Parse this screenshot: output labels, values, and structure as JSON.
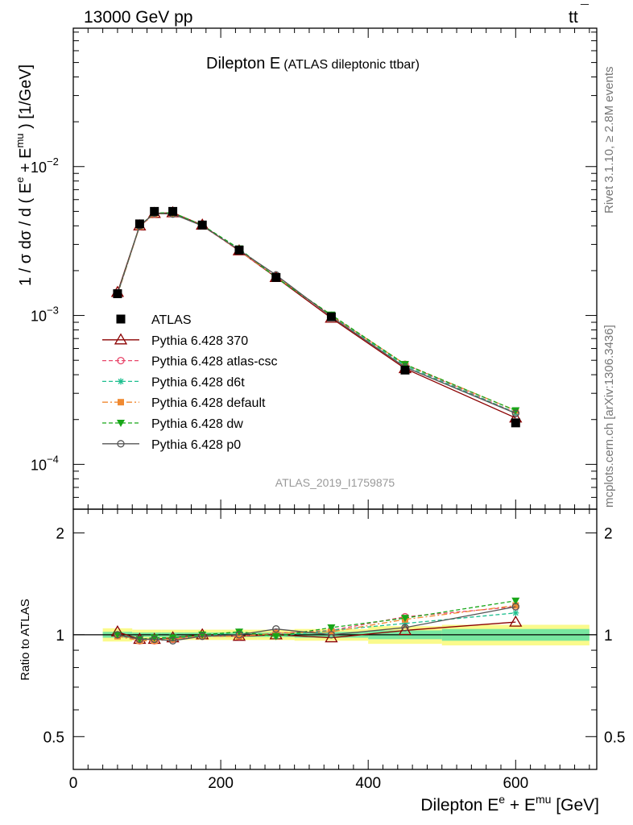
{
  "header": {
    "energy_label": "13000 GeV pp",
    "process_main": "tt",
    "process_bar": "¯",
    "rivet_label": "Rivet 3.1.10, ≥ 2.8M events",
    "site_label": "mcplots.cern.ch [arXiv:1306.3436]"
  },
  "chart_data": [
    {
      "type": "scatter",
      "panel": "main",
      "title_main": "Dilepton E",
      "title_sub": "(ATLAS dileptonic ttbar)",
      "watermark": "ATLAS_2019_I1759875",
      "ylabel": "1 / σ  dσ / d ( E",
      "ylabel_sup1": "e",
      "ylabel_mid": " + E",
      "ylabel_sup2": "mu",
      "ylabel_end": " ) [1/GeV]",
      "yscale": "log",
      "ylim": [
        5e-05,
        0.085
      ],
      "xlim": [
        0,
        710
      ],
      "yticks": [
        {
          "v": 0.0001,
          "m": "10",
          "e": "−4"
        },
        {
          "v": 0.001,
          "m": "10",
          "e": "−3"
        },
        {
          "v": 0.01,
          "m": "10",
          "e": "−2"
        }
      ],
      "x": [
        60,
        90,
        110,
        135,
        175,
        225,
        275,
        350,
        450,
        600
      ],
      "bin_edges": [
        [
          40,
          80
        ],
        [
          80,
          100
        ],
        [
          100,
          120
        ],
        [
          120,
          150
        ],
        [
          150,
          200
        ],
        [
          200,
          250
        ],
        [
          250,
          300
        ],
        [
          300,
          400
        ],
        [
          400,
          500
        ],
        [
          500,
          700
        ]
      ],
      "legend_position": "middle-left",
      "series": [
        {
          "name": "ATLAS",
          "color": "#000000",
          "marker": "square",
          "line": "none",
          "values": [
            0.0014,
            0.00412,
            0.005,
            0.005,
            0.00405,
            0.00275,
            0.0018,
            0.00098,
            0.00043,
            0.00019
          ]
        },
        {
          "name": "Pythia 6.428 370",
          "color": "#8b0000",
          "marker": "triangle-open",
          "line": "solid",
          "values": [
            0.00143,
            0.004,
            0.00485,
            0.0049,
            0.00405,
            0.00272,
            0.0018,
            0.00096,
            0.00044,
            0.000205
          ]
        },
        {
          "name": "Pythia 6.428 atlas-csc",
          "color": "#e8476b",
          "marker": "circle-open",
          "line": "dashed",
          "values": [
            0.0014,
            0.00397,
            0.0048,
            0.00485,
            0.004,
            0.00272,
            0.00181,
            0.001,
            0.00047,
            0.000222
          ]
        },
        {
          "name": "Pythia 6.428 d6t",
          "color": "#1dbf8f",
          "marker": "asterisk",
          "line": "dashed",
          "values": [
            0.0014,
            0.004,
            0.00485,
            0.00488,
            0.00403,
            0.0028,
            0.0018,
            0.001,
            0.00046,
            0.000222
          ]
        },
        {
          "name": "Pythia 6.428 default",
          "color": "#f08a32",
          "marker": "square-filled",
          "line": "dashdot",
          "values": [
            0.00138,
            0.00396,
            0.0048,
            0.00485,
            0.00401,
            0.00273,
            0.00182,
            0.001,
            0.00047,
            0.00023
          ]
        },
        {
          "name": "Pythia 6.428 dw",
          "color": "#18a618",
          "marker": "triangle-down-filled",
          "line": "dashed",
          "values": [
            0.0014,
            0.004,
            0.00488,
            0.0049,
            0.00404,
            0.00281,
            0.0018,
            0.00101,
            0.00047,
            0.00023
          ]
        },
        {
          "name": "Pythia 6.428 p0",
          "color": "#555555",
          "marker": "circle-open",
          "line": "solid",
          "values": [
            0.0014,
            0.004,
            0.00485,
            0.0048,
            0.004,
            0.00275,
            0.00187,
            0.00098,
            0.00045,
            0.00022
          ]
        }
      ]
    },
    {
      "type": "line",
      "panel": "ratio",
      "ylabel": "Ratio to ATLAS",
      "xlabel": "Dilepton E",
      "xlabel_sup1": "e",
      "xlabel_mid": " + E",
      "xlabel_sup2": "mu",
      "xlabel_end": " [GeV]",
      "yscale": "log",
      "ylim": [
        0.4,
        2.35
      ],
      "xlim": [
        0,
        710
      ],
      "yticks": [
        0.5,
        1,
        2
      ],
      "ytick_labels": [
        "0.5",
        "1",
        "2"
      ],
      "xticks": [
        0,
        200,
        400,
        600
      ],
      "xtick_labels": [
        "0",
        "200",
        "400",
        "600"
      ],
      "band_inner": [
        [
          0.98,
          1.02
        ],
        [
          0.985,
          1.015
        ],
        [
          0.985,
          1.015
        ],
        [
          0.985,
          1.015
        ],
        [
          0.985,
          1.015
        ],
        [
          0.985,
          1.015
        ],
        [
          0.985,
          1.015
        ],
        [
          0.98,
          1.02
        ],
        [
          0.97,
          1.03
        ],
        [
          0.96,
          1.04
        ]
      ],
      "band_outer": [
        [
          0.955,
          1.045
        ],
        [
          0.965,
          1.035
        ],
        [
          0.965,
          1.035
        ],
        [
          0.965,
          1.035
        ],
        [
          0.965,
          1.035
        ],
        [
          0.965,
          1.035
        ],
        [
          0.965,
          1.035
        ],
        [
          0.96,
          1.04
        ],
        [
          0.94,
          1.06
        ],
        [
          0.93,
          1.07
        ]
      ],
      "x": [
        60,
        90,
        110,
        135,
        175,
        225,
        275,
        350,
        450,
        600
      ],
      "series": [
        {
          "name": "Pythia 6.428 370",
          "values": [
            1.02,
            0.97,
            0.97,
            0.98,
            1.0,
            0.99,
            1.0,
            0.98,
            1.03,
            1.09
          ]
        },
        {
          "name": "Pythia 6.428 atlas-csc",
          "values": [
            1.0,
            0.96,
            0.96,
            0.97,
            0.99,
            0.99,
            1.01,
            1.03,
            1.13,
            1.21
          ]
        },
        {
          "name": "Pythia 6.428 d6t",
          "values": [
            1.0,
            0.97,
            0.97,
            0.98,
            0.99,
            1.02,
            0.99,
            1.03,
            1.08,
            1.16
          ]
        },
        {
          "name": "Pythia 6.428 default",
          "values": [
            0.99,
            0.96,
            0.96,
            0.97,
            0.99,
            0.99,
            1.01,
            1.02,
            1.11,
            1.22
          ]
        },
        {
          "name": "Pythia 6.428 dw",
          "values": [
            1.0,
            0.97,
            0.98,
            0.98,
            1.0,
            1.02,
            0.99,
            1.05,
            1.12,
            1.26
          ]
        },
        {
          "name": "Pythia 6.428 p0",
          "values": [
            1.0,
            0.97,
            0.97,
            0.96,
            0.99,
            1.0,
            1.04,
            1.0,
            1.05,
            1.21
          ]
        }
      ]
    }
  ]
}
